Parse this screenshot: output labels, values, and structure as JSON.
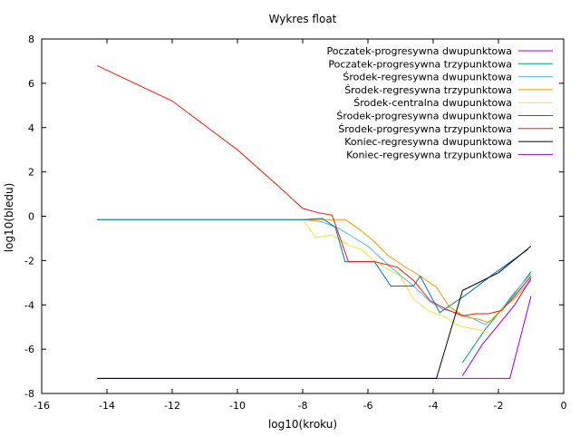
{
  "chart_data": {
    "type": "line",
    "title": "Wykres float",
    "xlabel": "log10(kroku)",
    "ylabel": "log10(bledu)",
    "xlim": [
      -16,
      0
    ],
    "ylim": [
      -8,
      8
    ],
    "xticks": [
      -16,
      -14,
      -12,
      -10,
      -8,
      -6,
      -4,
      -2,
      0
    ],
    "yticks": [
      -8,
      -6,
      -4,
      -2,
      0,
      2,
      4,
      6,
      8
    ],
    "grid": false,
    "legend_position": "top-right",
    "series": [
      {
        "name": "Poczatek-progresywna dwupunktowa",
        "color": "#9400d3",
        "points": [
          [
            -14.3,
            -7.32
          ],
          [
            -12,
            -7.32
          ],
          [
            -10,
            -7.32
          ],
          [
            -8,
            -7.32
          ],
          [
            -6,
            -7.32
          ],
          [
            -4,
            -7.32
          ],
          [
            -2,
            -7.32
          ],
          [
            -1.65,
            -7.32
          ],
          [
            -1.0,
            -3.6
          ]
        ]
      },
      {
        "name": "Poczatek-progresywna trzypunktowa",
        "color": "#009e73",
        "points": [
          [
            -3.1,
            -6.6
          ],
          [
            -2.4,
            -5.1
          ],
          [
            -1.5,
            -3.5
          ],
          [
            -1.0,
            -2.5
          ]
        ]
      },
      {
        "name": "Środek-regresywna dwupunktowa",
        "color": "#56b4e9",
        "points": [
          [
            -14.3,
            -0.15
          ],
          [
            -12,
            -0.15
          ],
          [
            -10,
            -0.15
          ],
          [
            -8,
            -0.15
          ],
          [
            -7.4,
            -0.25
          ],
          [
            -6.9,
            -0.55
          ],
          [
            -6.5,
            -0.9
          ],
          [
            -6,
            -1.35
          ],
          [
            -5.6,
            -1.9
          ],
          [
            -5.1,
            -2.55
          ],
          [
            -4.6,
            -3.15
          ],
          [
            -4.1,
            -3.85
          ],
          [
            -3.7,
            -4.2
          ],
          [
            -3.3,
            -4.35
          ],
          [
            -2.8,
            -4.6
          ],
          [
            -2.4,
            -4.9
          ],
          [
            -2.0,
            -4.4
          ],
          [
            -1.6,
            -3.6
          ],
          [
            -1.0,
            -2.6
          ]
        ]
      },
      {
        "name": "Środek-regresywna trzypunktowa",
        "color": "#e69f00",
        "points": [
          [
            -14.3,
            -0.15
          ],
          [
            -12,
            -0.15
          ],
          [
            -10,
            -0.15
          ],
          [
            -8,
            -0.15
          ],
          [
            -7.3,
            -0.15
          ],
          [
            -6.7,
            -0.15
          ],
          [
            -6.3,
            -0.55
          ],
          [
            -5.8,
            -1.15
          ],
          [
            -5.4,
            -1.75
          ],
          [
            -4.9,
            -2.25
          ],
          [
            -4.4,
            -2.7
          ],
          [
            -3.9,
            -3.2
          ],
          [
            -3.5,
            -4.1
          ],
          [
            -3.0,
            -4.55
          ],
          [
            -2.6,
            -4.65
          ],
          [
            -2.3,
            -4.8
          ],
          [
            -1.9,
            -4.2
          ],
          [
            -1.5,
            -3.7
          ],
          [
            -1.0,
            -2.9
          ]
        ]
      },
      {
        "name": "Środek-centralna dwupunktowa",
        "color": "#f0e442",
        "points": [
          [
            -14.3,
            -0.15
          ],
          [
            -12,
            -0.15
          ],
          [
            -10,
            -0.15
          ],
          [
            -8,
            -0.15
          ],
          [
            -7.6,
            -0.95
          ],
          [
            -7.1,
            -0.85
          ],
          [
            -6.6,
            -1.3
          ],
          [
            -6.2,
            -1.5
          ],
          [
            -5.9,
            -1.9
          ],
          [
            -5.5,
            -2.3
          ],
          [
            -5.0,
            -2.7
          ],
          [
            -4.6,
            -3.75
          ],
          [
            -4.1,
            -4.3
          ],
          [
            -3.7,
            -4.5
          ],
          [
            -3.2,
            -4.95
          ],
          [
            -2.7,
            -5.1
          ],
          [
            -2.3,
            -5.25
          ]
        ]
      },
      {
        "name": "Środek-progresywna dwupunktowa",
        "color": "#0072b2",
        "points": [
          [
            -14.3,
            -0.15
          ],
          [
            -12,
            -0.15
          ],
          [
            -10,
            -0.15
          ],
          [
            -8,
            -0.15
          ],
          [
            -7.4,
            -0.1
          ],
          [
            -7.0,
            -0.5
          ],
          [
            -6.7,
            -2.05
          ],
          [
            -6.2,
            -2.05
          ],
          [
            -5.8,
            -2.05
          ],
          [
            -5.3,
            -3.15
          ],
          [
            -4.6,
            -3.15
          ],
          [
            -4.4,
            -2.7
          ],
          [
            -3.8,
            -4.35
          ],
          [
            -3.0,
            -3.55
          ],
          [
            -2.1,
            -2.55
          ],
          [
            -1.1,
            -1.5
          ]
        ]
      },
      {
        "name": "Środek-progresywna trzypunktowa",
        "color": "#e51e10",
        "points": [
          [
            -14.3,
            6.8
          ],
          [
            -12,
            5.2
          ],
          [
            -10,
            3.0
          ],
          [
            -8.7,
            1.3
          ],
          [
            -8,
            0.35
          ],
          [
            -7.5,
            0.15
          ],
          [
            -7.1,
            0.05
          ],
          [
            -6.6,
            -2.05
          ],
          [
            -6.2,
            -2.05
          ],
          [
            -5.8,
            -2.05
          ],
          [
            -5.1,
            -2.3
          ],
          [
            -4.6,
            -2.9
          ],
          [
            -4.1,
            -3.8
          ],
          [
            -3.6,
            -4.2
          ],
          [
            -3.1,
            -4.5
          ],
          [
            -2.7,
            -4.4
          ],
          [
            -2.3,
            -4.4
          ],
          [
            -1.9,
            -4.25
          ],
          [
            -1.5,
            -3.6
          ],
          [
            -1.0,
            -2.7
          ]
        ]
      },
      {
        "name": "Koniec-regresywna dwupunktowa",
        "color": "#000000",
        "points": [
          [
            -14.3,
            -7.32
          ],
          [
            -12,
            -7.32
          ],
          [
            -10,
            -7.32
          ],
          [
            -8,
            -7.32
          ],
          [
            -6,
            -7.32
          ],
          [
            -3.9,
            -7.32
          ],
          [
            -3.1,
            -3.35
          ],
          [
            -2.0,
            -2.55
          ],
          [
            -1.0,
            -1.35
          ]
        ]
      },
      {
        "name": "Koniec-regresywna trzypunktowa",
        "color": "#9400d3",
        "points": [
          [
            -3.1,
            -7.2
          ],
          [
            -2.5,
            -5.8
          ],
          [
            -1.5,
            -4.0
          ],
          [
            -1.0,
            -2.8
          ]
        ]
      }
    ]
  }
}
